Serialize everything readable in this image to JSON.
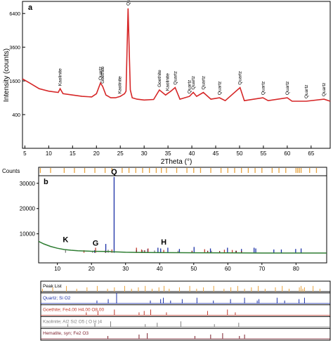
{
  "panel_a": {
    "label": "a",
    "ylabel": "Intensity (counts)",
    "xlabel": "2Theta (°)"
  },
  "panel_b": {
    "label": "b",
    "counts_label": "Counts"
  },
  "panel_c": {
    "rows": [
      {
        "label": "Peak List",
        "color": "#000000"
      },
      {
        "label": "Quartz; Si O2",
        "color": "#1a2fa6"
      },
      {
        "label": "Goethite; Fe4.00 H4.00 O8.00",
        "color": "#c0392b"
      },
      {
        "label": "Kaolinite; Al2 Si2 O5 ( O H )4",
        "color": "#7f7f7f"
      },
      {
        "label": "Hematite, syn; Fe2 O3",
        "color": "#7b1f2b"
      }
    ]
  },
  "chart_data": [
    {
      "type": "line",
      "title": "",
      "xlabel": "2Theta (°)",
      "ylabel": "Intensity (counts)",
      "xlim": [
        4.5,
        69
      ],
      "ylim": [
        -200,
        7600
      ],
      "xticks": [
        5,
        10,
        15,
        20,
        25,
        30,
        35,
        40,
        45,
        50,
        55,
        60,
        65
      ],
      "yticks": [
        400,
        1600,
        3600,
        6400
      ],
      "series": [
        {
          "color": "#d62728",
          "x": [
            4.5,
            6,
            8,
            10,
            12,
            12.4,
            13,
            15,
            17,
            19,
            20,
            20.85,
            21.3,
            22,
            23,
            24,
            25,
            25.9,
            26.2,
            26.64,
            27.1,
            27.5,
            28.5,
            30,
            32,
            33.2,
            34.5,
            35.6,
            36.5,
            37.5,
            39.5,
            40.3,
            41,
            42.4,
            44,
            45.8,
            47,
            50.1,
            51,
            54.9,
            56,
            60,
            61,
            64,
            67.7,
            69
          ],
          "y": [
            1700,
            1500,
            1250,
            1150,
            1100,
            1250,
            1050,
            1000,
            950,
            930,
            1050,
            1500,
            1350,
            1000,
            900,
            900,
            950,
            1050,
            1150,
            6900,
            1200,
            900,
            850,
            820,
            840,
            1200,
            1000,
            1150,
            1300,
            850,
            950,
            1100,
            950,
            1100,
            850,
            900,
            800,
            1300,
            800,
            900,
            800,
            900,
            780,
            780,
            850,
            780
          ]
        }
      ],
      "annotations": [
        {
          "text": "Kaolinite",
          "x": 12.4
        },
        {
          "text": "Quartz",
          "x": 20.85
        },
        {
          "text": "Goethite",
          "x": 21.3
        },
        {
          "text": "Kaolinite",
          "x": 24.9
        },
        {
          "text": "Quartz",
          "x": 26.64
        },
        {
          "text": "Goethite",
          "x": 33.2
        },
        {
          "text": "Kaolinite",
          "x": 34.9
        },
        {
          "text": "Quartz",
          "x": 36.5
        },
        {
          "text": "Quartz",
          "x": 39.5
        },
        {
          "text": "Quartz",
          "x": 40.3
        },
        {
          "text": "Quartz",
          "x": 42.4
        },
        {
          "text": "Quartz",
          "x": 45.8
        },
        {
          "text": "Quartz",
          "x": 50.1
        },
        {
          "text": "Quartz",
          "x": 54.9
        },
        {
          "text": "Quartz",
          "x": 60
        },
        {
          "text": "Quartz",
          "x": 64
        },
        {
          "text": "Quartz",
          "x": 67.7
        }
      ]
    },
    {
      "type": "line",
      "title": "",
      "xlabel": "",
      "ylabel": "Counts",
      "xlim": [
        4.5,
        89
      ],
      "ylim": [
        -1500,
        33000
      ],
      "xticks": [
        10,
        20,
        30,
        40,
        50,
        60,
        70,
        80
      ],
      "yticks": [
        10000,
        20000,
        30000
      ],
      "series": [
        {
          "color": "#2e7d32",
          "x": [
            4.5,
            6,
            8,
            10,
            12,
            14,
            16,
            18,
            20,
            22,
            24,
            25,
            26,
            28,
            30,
            35,
            40,
            50,
            60,
            70,
            80,
            89
          ],
          "y": [
            7000,
            6000,
            5000,
            4300,
            3800,
            3500,
            3300,
            3200,
            3100,
            3050,
            3000,
            3000,
            2900,
            2800,
            2700,
            2600,
            2550,
            2500,
            2450,
            2400,
            2400,
            2400
          ]
        }
      ],
      "peaks": {
        "blue": [
          {
            "x": 20.9,
            "y": 3500
          },
          {
            "x": 24.2,
            "y": 6000
          },
          {
            "x": 26.64,
            "y": 32500
          },
          {
            "x": 36.5,
            "y": 4000
          },
          {
            "x": 39.5,
            "y": 4500
          },
          {
            "x": 40.3,
            "y": 4200
          },
          {
            "x": 42.4,
            "y": 4500
          },
          {
            "x": 45.8,
            "y": 4000
          },
          {
            "x": 50.1,
            "y": 4800
          },
          {
            "x": 54.9,
            "y": 4200
          },
          {
            "x": 59.9,
            "y": 4500
          },
          {
            "x": 64.0,
            "y": 4000
          },
          {
            "x": 67.7,
            "y": 4500
          },
          {
            "x": 68.2,
            "y": 4200
          },
          {
            "x": 73.5,
            "y": 3800
          },
          {
            "x": 75.7,
            "y": 3800
          },
          {
            "x": 79.9,
            "y": 4000
          },
          {
            "x": 81.5,
            "y": 4200
          }
        ],
        "red": [
          {
            "x": 17.8,
            "y": 3500
          },
          {
            "x": 21.2,
            "y": 4500
          },
          {
            "x": 26.0,
            "y": 3800
          },
          {
            "x": 33.2,
            "y": 4500
          },
          {
            "x": 34.7,
            "y": 3800
          },
          {
            "x": 36.6,
            "y": 4200
          },
          {
            "x": 41.2,
            "y": 3600
          },
          {
            "x": 53.2,
            "y": 3900
          },
          {
            "x": 59.0,
            "y": 3700
          },
          {
            "x": 61.3,
            "y": 3600
          }
        ],
        "gray": [
          {
            "x": 12.4,
            "y": 3500
          },
          {
            "x": 20.3,
            "y": 3300
          },
          {
            "x": 24.9,
            "y": 3700
          },
          {
            "x": 35.0,
            "y": 3500
          },
          {
            "x": 38.5,
            "y": 3400
          },
          {
            "x": 45.4,
            "y": 3300
          },
          {
            "x": 55.2,
            "y": 3300
          },
          {
            "x": 62.3,
            "y": 3300
          }
        ],
        "dark": [
          {
            "x": 24.1,
            "y": 3400
          },
          {
            "x": 33.2,
            "y": 3600
          },
          {
            "x": 35.6,
            "y": 3500
          },
          {
            "x": 49.5,
            "y": 3300
          },
          {
            "x": 54.1,
            "y": 3300
          },
          {
            "x": 57.6,
            "y": 3200
          },
          {
            "x": 62.5,
            "y": 3300
          },
          {
            "x": 64.0,
            "y": 3200
          }
        ]
      },
      "tick_marks": [
        5,
        8,
        12,
        15,
        18,
        21,
        24,
        26,
        29,
        31,
        33,
        35,
        37,
        39,
        40.5,
        42,
        45,
        48,
        50,
        52,
        55,
        58,
        60,
        62,
        64,
        66,
        68,
        70,
        73,
        75,
        77,
        80,
        80.5,
        81,
        81.5,
        84,
        86
      ],
      "annotations": [
        {
          "text": "Q",
          "x": 26.64
        },
        {
          "text": "K",
          "x": 12.4
        },
        {
          "text": "G",
          "x": 21.2
        },
        {
          "text": "H",
          "x": 41.2
        }
      ]
    }
  ]
}
